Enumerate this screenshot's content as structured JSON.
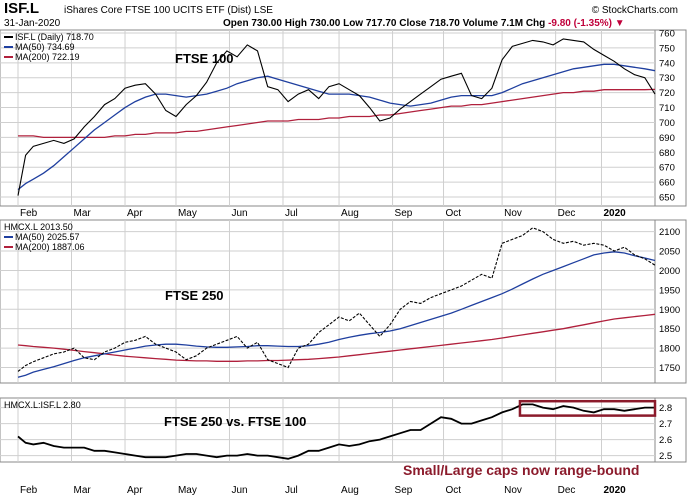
{
  "header": {
    "ticker": "ISF.L",
    "full_name": "iShares Core FTSE 100 UCITS ETF (Dist)",
    "exchange": "LSE",
    "date": "31-Jan-2020",
    "open_label": "Open",
    "open": "730.00",
    "high_label": "High",
    "high": "730.00",
    "low_label": "Low",
    "low": "717.70",
    "close_label": "Close",
    "close": "718.70",
    "volume_label": "Volume",
    "volume": "7.1M",
    "chg_label": "Chg",
    "chg": "-9.80 (-1.35%)",
    "source": "© StockCharts.com"
  },
  "colors": {
    "price": "#000000",
    "ma50": "#1f3f9f",
    "ma200": "#b0203c",
    "grid": "#cfcfcf",
    "annotation": "#8b1a2b"
  },
  "chart_data": [
    {
      "type": "line",
      "panel": "top",
      "title": "FTSE 100",
      "legend": {
        "price": "ISF.L (Daily) 718.70",
        "ma50": "MA(50) 734.69",
        "ma200": "MA(200) 722.19"
      },
      "ylim": [
        644,
        762
      ],
      "yticks": [
        650,
        660,
        670,
        680,
        690,
        700,
        710,
        720,
        730,
        740,
        750,
        760
      ],
      "x": [
        0,
        3,
        6,
        10,
        14,
        18,
        22,
        26,
        30,
        34,
        38,
        42,
        46,
        50,
        54,
        58,
        62,
        66,
        70,
        74,
        78,
        82,
        86,
        90,
        94,
        98,
        102,
        106,
        110,
        114,
        118,
        122,
        126,
        130,
        134,
        138,
        142,
        146,
        150,
        154,
        158,
        162,
        166,
        170,
        174,
        178,
        182,
        186,
        190,
        194,
        198,
        202,
        206,
        210,
        214,
        218,
        222,
        226,
        230,
        234,
        238,
        242,
        246,
        250
      ],
      "price": [
        651,
        678,
        684,
        686,
        688,
        686,
        689,
        697,
        704,
        712,
        716,
        723,
        725,
        726,
        719,
        708,
        704,
        712,
        718,
        727,
        740,
        748,
        744,
        752,
        748,
        724,
        722,
        714,
        719,
        722,
        716,
        724,
        726,
        722,
        718,
        710,
        701,
        703,
        709,
        714,
        719,
        724,
        729,
        731,
        733,
        718,
        716,
        723,
        742,
        751,
        753,
        755,
        754,
        752,
        756,
        755,
        754,
        749,
        745,
        741,
        736,
        732,
        730,
        719
      ],
      "ma50": [
        655,
        659,
        662,
        666,
        671,
        677,
        683,
        689,
        695,
        700,
        705,
        710,
        714,
        717,
        719,
        719,
        718,
        717,
        718,
        719,
        721,
        723,
        726,
        728,
        730,
        731,
        729,
        727,
        725,
        723,
        721,
        719,
        719,
        719,
        718,
        717,
        715,
        713,
        712,
        711,
        712,
        713,
        715,
        717,
        718,
        718,
        718,
        718,
        720,
        723,
        726,
        728,
        730,
        732,
        734,
        736,
        737,
        738,
        739,
        739,
        738,
        737,
        736,
        734.69
      ],
      "ma200": [
        691,
        691,
        691,
        690,
        690,
        690,
        690,
        690,
        690,
        690,
        691,
        691,
        692,
        692,
        693,
        693,
        693,
        694,
        694,
        695,
        696,
        697,
        698,
        699,
        700,
        701,
        701,
        701,
        702,
        702,
        702,
        703,
        703,
        704,
        704,
        704,
        705,
        705,
        706,
        707,
        708,
        709,
        710,
        711,
        711,
        712,
        712,
        713,
        714,
        715,
        716,
        717,
        718,
        719,
        720,
        720,
        721,
        721,
        722,
        722,
        722,
        722,
        722,
        722.19
      ]
    },
    {
      "type": "line",
      "panel": "middle",
      "title": "FTSE 250",
      "legend": {
        "price": "HMCX.L 2013.50",
        "ma50": "MA(50) 2025.57",
        "ma200": "MA(200) 1887.06"
      },
      "ylim": [
        1710,
        2130
      ],
      "yticks": [
        1750,
        1800,
        1850,
        1900,
        1950,
        2000,
        2050,
        2100
      ],
      "x": [
        0,
        3,
        6,
        10,
        14,
        18,
        22,
        26,
        30,
        34,
        38,
        42,
        46,
        50,
        54,
        58,
        62,
        66,
        70,
        74,
        78,
        82,
        86,
        90,
        94,
        98,
        102,
        106,
        110,
        114,
        118,
        122,
        126,
        130,
        134,
        138,
        142,
        146,
        150,
        154,
        158,
        162,
        166,
        170,
        174,
        178,
        182,
        186,
        190,
        194,
        198,
        202,
        206,
        210,
        214,
        218,
        222,
        226,
        230,
        234,
        238,
        242,
        246,
        250
      ],
      "price": [
        1740,
        1755,
        1765,
        1775,
        1785,
        1790,
        1800,
        1775,
        1770,
        1790,
        1800,
        1815,
        1820,
        1830,
        1810,
        1800,
        1790,
        1770,
        1780,
        1800,
        1810,
        1820,
        1830,
        1800,
        1815,
        1770,
        1760,
        1750,
        1800,
        1810,
        1840,
        1860,
        1880,
        1870,
        1890,
        1860,
        1830,
        1860,
        1900,
        1920,
        1915,
        1930,
        1940,
        1950,
        1960,
        1975,
        1990,
        1980,
        2070,
        2080,
        2090,
        2110,
        2100,
        2080,
        2070,
        2075,
        2065,
        2070,
        2065,
        2050,
        2060,
        2040,
        2030,
        2013.5
      ],
      "ma50": [
        1725,
        1730,
        1738,
        1745,
        1752,
        1760,
        1768,
        1775,
        1780,
        1785,
        1790,
        1795,
        1800,
        1805,
        1808,
        1810,
        1810,
        1808,
        1805,
        1803,
        1802,
        1802,
        1803,
        1804,
        1806,
        1806,
        1805,
        1804,
        1804,
        1806,
        1810,
        1815,
        1822,
        1828,
        1833,
        1837,
        1840,
        1844,
        1850,
        1858,
        1866,
        1874,
        1882,
        1890,
        1900,
        1910,
        1920,
        1930,
        1940,
        1952,
        1965,
        1978,
        1990,
        2000,
        2010,
        2020,
        2030,
        2040,
        2045,
        2048,
        2045,
        2038,
        2032,
        2025.57
      ],
      "ma200": [
        1808,
        1806,
        1804,
        1802,
        1800,
        1797,
        1794,
        1791,
        1788,
        1785,
        1782,
        1779,
        1777,
        1775,
        1773,
        1771,
        1769,
        1768,
        1767,
        1767,
        1766,
        1766,
        1766,
        1767,
        1767,
        1768,
        1768,
        1769,
        1770,
        1771,
        1773,
        1775,
        1777,
        1780,
        1783,
        1786,
        1789,
        1792,
        1795,
        1798,
        1801,
        1804,
        1807,
        1810,
        1813,
        1816,
        1819,
        1822,
        1826,
        1830,
        1834,
        1838,
        1842,
        1846,
        1850,
        1855,
        1860,
        1865,
        1870,
        1875,
        1878,
        1881,
        1884,
        1887.06
      ]
    },
    {
      "type": "line",
      "panel": "bottom",
      "title": "FTSE 250 vs. FTSE 100",
      "annotation": "Small/Large caps now range-bound",
      "legend": {
        "ratio": "HMCX.L:ISF.L 2.80"
      },
      "ylim": [
        2.46,
        2.86
      ],
      "yticks": [
        2.5,
        2.6,
        2.7,
        2.8
      ],
      "x": [
        0,
        3,
        6,
        10,
        14,
        18,
        22,
        26,
        30,
        34,
        38,
        42,
        46,
        50,
        54,
        58,
        62,
        66,
        70,
        74,
        78,
        82,
        86,
        90,
        94,
        98,
        102,
        106,
        110,
        114,
        118,
        122,
        126,
        130,
        134,
        138,
        142,
        146,
        150,
        154,
        158,
        162,
        166,
        170,
        174,
        178,
        182,
        186,
        190,
        194,
        198,
        202,
        206,
        210,
        214,
        218,
        222,
        226,
        230,
        234,
        238,
        242,
        246,
        250
      ],
      "ratio": [
        2.62,
        2.58,
        2.57,
        2.58,
        2.56,
        2.55,
        2.55,
        2.55,
        2.53,
        2.53,
        2.52,
        2.51,
        2.5,
        2.49,
        2.49,
        2.49,
        2.5,
        2.51,
        2.51,
        2.5,
        2.49,
        2.5,
        2.5,
        2.51,
        2.5,
        2.5,
        2.49,
        2.48,
        2.5,
        2.53,
        2.53,
        2.55,
        2.57,
        2.56,
        2.57,
        2.59,
        2.6,
        2.62,
        2.64,
        2.66,
        2.66,
        2.7,
        2.74,
        2.73,
        2.7,
        2.7,
        2.72,
        2.74,
        2.77,
        2.79,
        2.82,
        2.82,
        2.8,
        2.79,
        2.81,
        2.8,
        2.78,
        2.77,
        2.79,
        2.79,
        2.78,
        2.79,
        2.8,
        2.8
      ],
      "range_box": {
        "x_start": 197,
        "x_end": 250,
        "y_low": 2.75,
        "y_high": 2.84
      }
    }
  ],
  "x_axis": {
    "months": [
      {
        "label": "Feb",
        "x": 0,
        "bold": false
      },
      {
        "label": "Mar",
        "x": 21,
        "bold": false
      },
      {
        "label": "Apr",
        "x": 42,
        "bold": false
      },
      {
        "label": "May",
        "x": 62,
        "bold": false
      },
      {
        "label": "Jun",
        "x": 83,
        "bold": false
      },
      {
        "label": "Jul",
        "x": 104,
        "bold": false
      },
      {
        "label": "Aug",
        "x": 126,
        "bold": false
      },
      {
        "label": "Sep",
        "x": 147,
        "bold": false
      },
      {
        "label": "Oct",
        "x": 167,
        "bold": false
      },
      {
        "label": "Nov",
        "x": 190,
        "bold": false
      },
      {
        "label": "Dec",
        "x": 211,
        "bold": false
      },
      {
        "label": "2020",
        "x": 229,
        "bold": true
      }
    ],
    "range": [
      0,
      250
    ]
  }
}
